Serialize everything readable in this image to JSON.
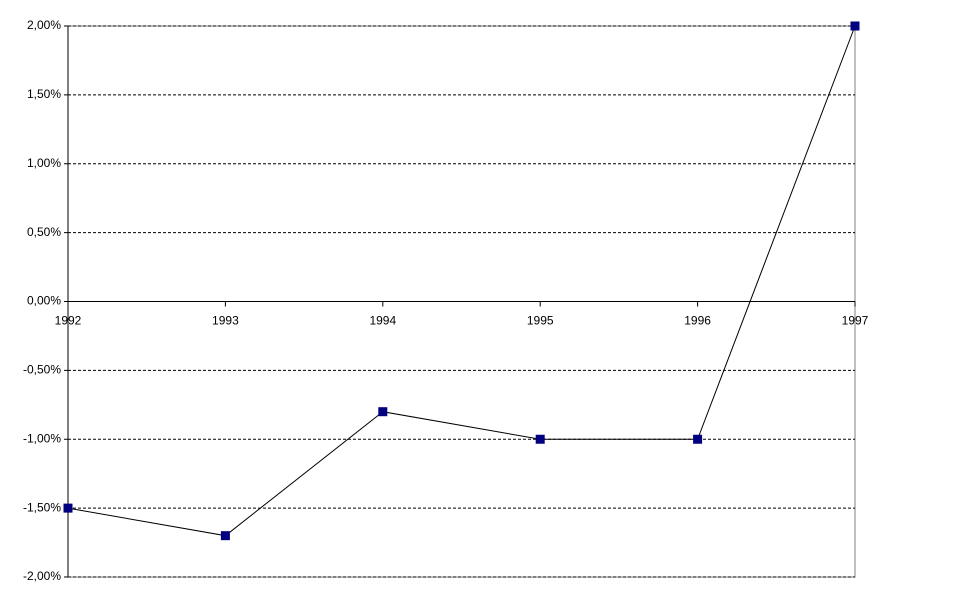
{
  "chart_data": {
    "type": "line",
    "categories": [
      "1992",
      "1993",
      "1994",
      "1995",
      "1996",
      "1997"
    ],
    "series": [
      {
        "color": "#000080",
        "values": [
          -1.5,
          -1.7,
          -0.8,
          -1.0,
          -1.0,
          2.0
        ]
      }
    ],
    "ylim": [
      -2,
      2
    ],
    "yticks": [
      {
        "value": -2,
        "label": "-2,00%"
      },
      {
        "value": -1.5,
        "label": "-1,50%"
      },
      {
        "value": -1,
        "label": "-1,00%"
      },
      {
        "value": -0.5,
        "label": "-0,50%"
      },
      {
        "value": 0,
        "label": "0,00%"
      },
      {
        "value": 0.5,
        "label": "0,50%"
      },
      {
        "value": 1,
        "label": "1,00%"
      },
      {
        "value": 1.5,
        "label": "1,50%"
      },
      {
        "value": 2,
        "label": "2,00%"
      }
    ],
    "grid": true
  }
}
